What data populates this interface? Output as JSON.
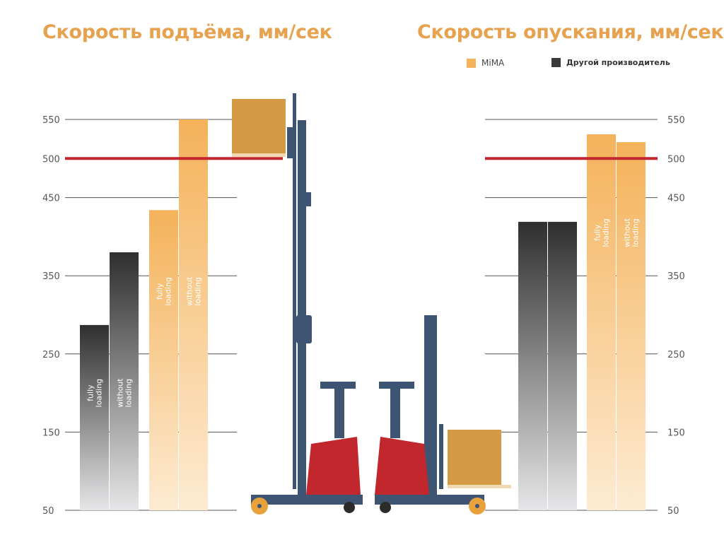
{
  "colors": {
    "mima": "#f4b25a",
    "other": "#2f2f2f",
    "reference_line": "#c3262e",
    "title": "#e6a24e"
  },
  "legend": {
    "mima_label": "MiMA",
    "other_label": "Другой производитель"
  },
  "chart_data": [
    {
      "type": "bar",
      "title": "Скорость подъёма, мм/сек",
      "y_ticks": [
        50,
        150,
        250,
        350,
        450,
        500,
        550
      ],
      "ylim": [
        50,
        550
      ],
      "reference_line": 500,
      "series": [
        {
          "name": "Другой производитель",
          "color_key": "other",
          "bars": [
            {
              "label": "fully loading",
              "value": 287
            },
            {
              "label": "without loading",
              "value": 380
            }
          ]
        },
        {
          "name": "MiMA",
          "color_key": "mima",
          "bars": [
            {
              "label": "fully loading",
              "value": 434
            },
            {
              "label": "without loading",
              "value": 550
            }
          ]
        }
      ],
      "tick_side": "left"
    },
    {
      "type": "bar",
      "title": "Скорость опускания, мм/сек",
      "y_ticks": [
        50,
        150,
        250,
        350,
        450,
        500,
        550
      ],
      "ylim": [
        50,
        550
      ],
      "reference_line": 500,
      "series": [
        {
          "name": "Другой производитель",
          "color_key": "other",
          "bars": [
            {
              "label": "",
              "value": 419
            },
            {
              "label": "",
              "value": 419
            }
          ]
        },
        {
          "name": "MiMA",
          "color_key": "mima",
          "bars": [
            {
              "label": "fully loading",
              "value": 531
            },
            {
              "label": "without loading",
              "value": 521
            }
          ]
        }
      ],
      "tick_side": "right"
    }
  ]
}
